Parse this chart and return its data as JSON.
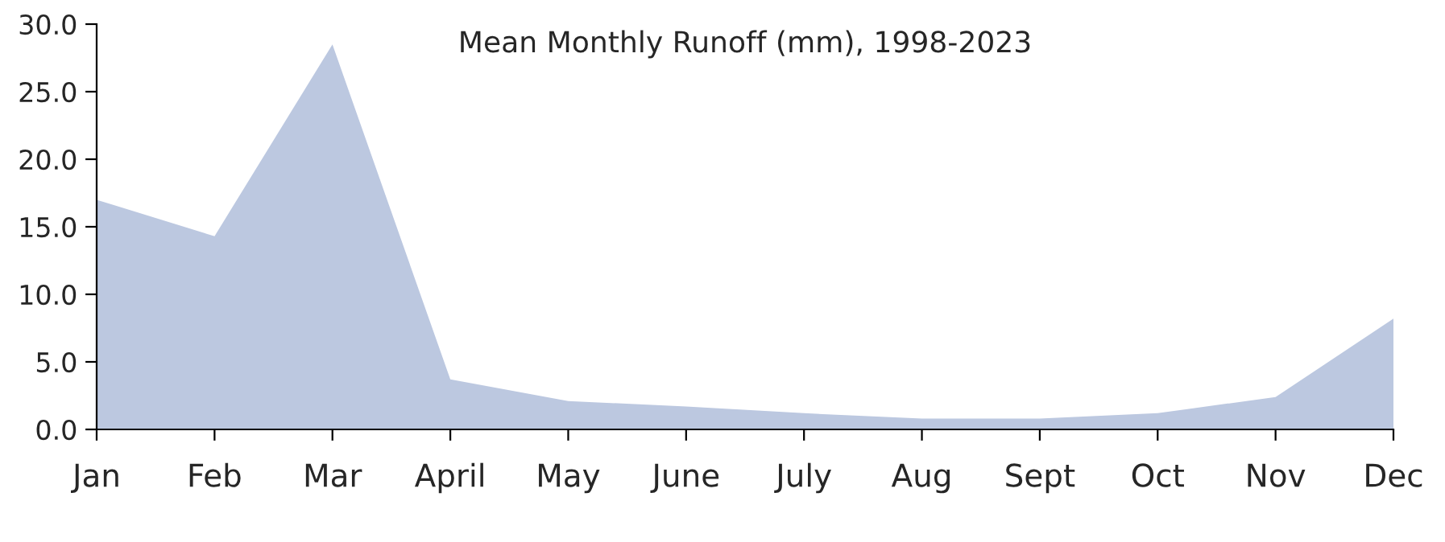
{
  "chart_data": {
    "type": "area",
    "title": "Mean Monthly Runoff (mm), 1998-2023",
    "categories": [
      "Jan",
      "Feb",
      "Mar",
      "April",
      "May",
      "June",
      "July",
      "Aug",
      "Sept",
      "Oct",
      "Nov",
      "Dec"
    ],
    "series": [
      {
        "color": "#bcc8e0",
        "values": [
          17.0,
          14.3,
          28.5,
          3.7,
          2.1,
          1.7,
          1.2,
          0.8,
          0.8,
          1.2,
          2.4,
          8.2
        ]
      }
    ],
    "ylim": [
      0,
      30
    ],
    "yticks": [
      {
        "value": 0,
        "label": "0.0"
      },
      {
        "value": 5,
        "label": "5.0"
      },
      {
        "value": 10,
        "label": "10.0"
      },
      {
        "value": 15,
        "label": "15.0"
      },
      {
        "value": 20,
        "label": "20.0"
      },
      {
        "value": 25,
        "label": "25.0"
      },
      {
        "value": 30,
        "label": "30.0"
      }
    ],
    "grid": false,
    "legend": false
  }
}
